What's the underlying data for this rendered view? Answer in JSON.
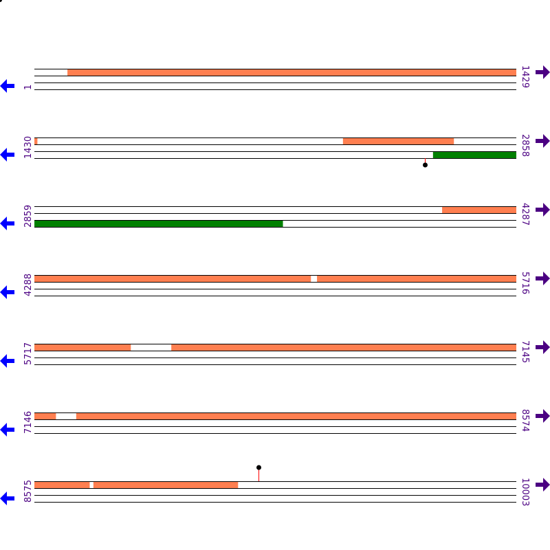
{
  "colors": {
    "feature_top": "#ff7f50",
    "feature_bottom": "#008000",
    "track_line": "#000000",
    "label": "#4b0082",
    "reverse_arrow": "#0000ff",
    "forward_arrow": "#4b0082",
    "marker_stem": "#ff0000",
    "marker_head": "#000000"
  },
  "icons": {
    "reverse": "arrow-left-icon",
    "forward": "arrow-right-icon"
  },
  "rows": [
    {
      "start": "1",
      "end": "1429",
      "s": 1,
      "e": 1429,
      "top": [
        [
          99,
          1429
        ]
      ],
      "bottom": [],
      "markers": []
    },
    {
      "start": "1430",
      "end": "2858",
      "s": 1430,
      "e": 2858,
      "top": [
        [
          1430,
          1438
        ],
        [
          2345,
          2673
        ]
      ],
      "bottom": [
        [
          2612,
          2858
        ]
      ],
      "markers": [
        {
          "pos": 2588,
          "side": "below"
        }
      ]
    },
    {
      "start": "2859",
      "end": "4287",
      "s": 2859,
      "e": 4287,
      "top": [
        [
          4068,
          4287
        ]
      ],
      "bottom": [
        [
          2859,
          3595
        ]
      ],
      "markers": []
    },
    {
      "start": "4288",
      "end": "5716",
      "s": 4288,
      "e": 5716,
      "top": [
        [
          4288,
          5107
        ],
        [
          5126,
          5716
        ]
      ],
      "bottom": [],
      "markers": []
    },
    {
      "start": "5717",
      "end": "7145",
      "s": 5717,
      "e": 7145,
      "top": [
        [
          5717,
          6002
        ],
        [
          6123,
          7145
        ]
      ],
      "bottom": [],
      "markers": []
    },
    {
      "start": "7146",
      "end": "8574",
      "s": 7146,
      "e": 8574,
      "top": [
        [
          7146,
          7209
        ],
        [
          7270,
          8574
        ]
      ],
      "bottom": [],
      "markers": []
    },
    {
      "start": "8575",
      "end": "10003",
      "s": 8575,
      "e": 10003,
      "top": [
        [
          8575,
          8738
        ],
        [
          8750,
          9178
        ]
      ],
      "bottom": [],
      "markers": [
        {
          "pos": 9240,
          "side": "above"
        }
      ]
    }
  ]
}
